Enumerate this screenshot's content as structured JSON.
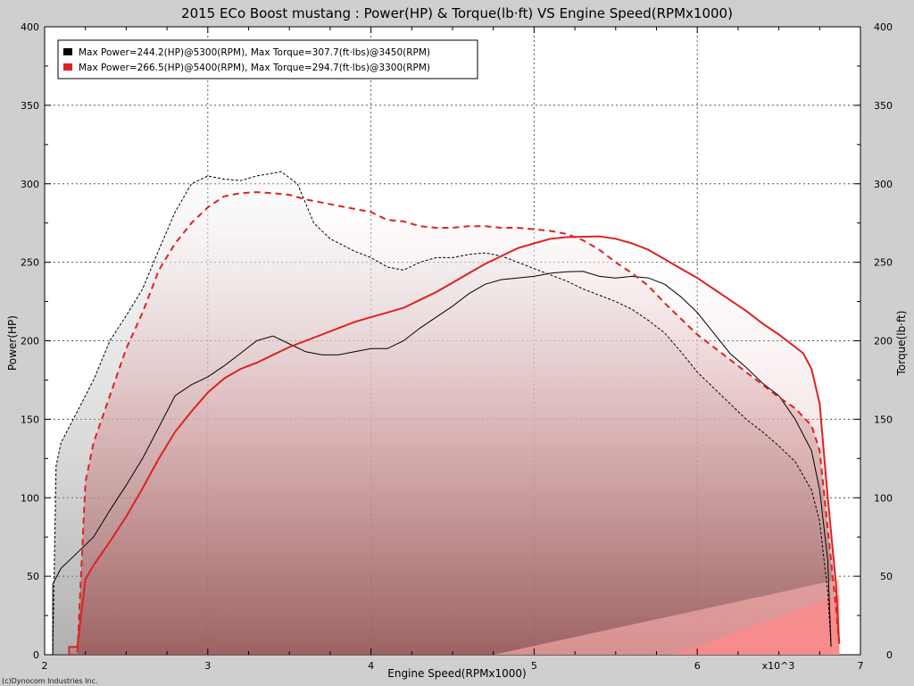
{
  "chart_data": {
    "type": "line",
    "title": "2015 ECo Boost mustang : Power(HP) & Torque(lb·ft) VS Engine Speed(RPMx1000)",
    "xlabel": "Engine Speed(RPMx1000)",
    "x_multiplier_label": "x10^3",
    "ylabel_left": "Power(HP)",
    "ylabel_right": "Torque(lb·ft)",
    "xlim": [
      2,
      7
    ],
    "ylim": [
      0,
      400
    ],
    "x_ticks": [
      "2",
      "3",
      "4",
      "5",
      "6",
      "7"
    ],
    "y_ticks": [
      "0",
      "50",
      "100",
      "150",
      "200",
      "250",
      "300",
      "350",
      "400"
    ],
    "grid": true,
    "legend_position": "top-left",
    "copyright": "(c)Dynocom Industries Inc.",
    "series": [
      {
        "name": "Max Power=244.2(HP)@5300(RPM), Max Torque=307.7(ft·lbs)@3450(RPM)",
        "color": "#000000",
        "power": [
          [
            2.05,
            0
          ],
          [
            2.05,
            45
          ],
          [
            2.1,
            55
          ],
          [
            2.2,
            65
          ],
          [
            2.3,
            75
          ],
          [
            2.4,
            92
          ],
          [
            2.5,
            108
          ],
          [
            2.6,
            125
          ],
          [
            2.7,
            145
          ],
          [
            2.8,
            165
          ],
          [
            2.9,
            172
          ],
          [
            3.0,
            177
          ],
          [
            3.1,
            184
          ],
          [
            3.2,
            192
          ],
          [
            3.3,
            200
          ],
          [
            3.4,
            203
          ],
          [
            3.5,
            198
          ],
          [
            3.6,
            193
          ],
          [
            3.7,
            191
          ],
          [
            3.8,
            191
          ],
          [
            3.9,
            193
          ],
          [
            4.0,
            195
          ],
          [
            4.1,
            195
          ],
          [
            4.2,
            200
          ],
          [
            4.3,
            208
          ],
          [
            4.4,
            215
          ],
          [
            4.5,
            222
          ],
          [
            4.6,
            230
          ],
          [
            4.7,
            236
          ],
          [
            4.8,
            239
          ],
          [
            4.9,
            240
          ],
          [
            5.0,
            241
          ],
          [
            5.1,
            243
          ],
          [
            5.2,
            244
          ],
          [
            5.3,
            244.2
          ],
          [
            5.4,
            241
          ],
          [
            5.5,
            240
          ],
          [
            5.6,
            241
          ],
          [
            5.7,
            240
          ],
          [
            5.8,
            236
          ],
          [
            5.9,
            228
          ],
          [
            6.0,
            218
          ],
          [
            6.1,
            205
          ],
          [
            6.2,
            192
          ],
          [
            6.3,
            183
          ],
          [
            6.4,
            173
          ],
          [
            6.5,
            165
          ],
          [
            6.6,
            150
          ],
          [
            6.7,
            130
          ],
          [
            6.75,
            105
          ],
          [
            6.8,
            60
          ],
          [
            6.82,
            5
          ]
        ],
        "torque": [
          [
            2.05,
            0
          ],
          [
            2.07,
            120
          ],
          [
            2.1,
            135
          ],
          [
            2.2,
            155
          ],
          [
            2.3,
            175
          ],
          [
            2.4,
            200
          ],
          [
            2.5,
            216
          ],
          [
            2.6,
            233
          ],
          [
            2.7,
            258
          ],
          [
            2.8,
            282
          ],
          [
            2.9,
            300
          ],
          [
            3.0,
            305
          ],
          [
            3.1,
            303
          ],
          [
            3.2,
            302
          ],
          [
            3.3,
            305
          ],
          [
            3.45,
            307.7
          ],
          [
            3.55,
            300
          ],
          [
            3.65,
            275
          ],
          [
            3.75,
            265
          ],
          [
            3.9,
            257
          ],
          [
            4.0,
            253
          ],
          [
            4.1,
            247
          ],
          [
            4.2,
            245
          ],
          [
            4.3,
            250
          ],
          [
            4.4,
            253
          ],
          [
            4.5,
            253
          ],
          [
            4.6,
            255
          ],
          [
            4.7,
            256
          ],
          [
            4.8,
            254
          ],
          [
            4.9,
            250
          ],
          [
            5.0,
            246
          ],
          [
            5.1,
            242
          ],
          [
            5.2,
            238
          ],
          [
            5.3,
            233
          ],
          [
            5.4,
            229
          ],
          [
            5.5,
            225
          ],
          [
            5.6,
            220
          ],
          [
            5.7,
            213
          ],
          [
            5.8,
            205
          ],
          [
            5.9,
            193
          ],
          [
            6.0,
            180
          ],
          [
            6.1,
            170
          ],
          [
            6.2,
            160
          ],
          [
            6.3,
            150
          ],
          [
            6.4,
            142
          ],
          [
            6.5,
            133
          ],
          [
            6.6,
            123
          ],
          [
            6.7,
            105
          ],
          [
            6.75,
            85
          ],
          [
            6.8,
            40
          ],
          [
            6.82,
            5
          ]
        ]
      },
      {
        "name": "Max Power=266.5(HP)@5400(RPM), Max Torque=294.7(ft·lbs)@3300(RPM)",
        "color": "#dd2222",
        "power": [
          [
            2.15,
            0
          ],
          [
            2.15,
            5
          ],
          [
            2.2,
            5
          ],
          [
            2.25,
            48
          ],
          [
            2.3,
            57
          ],
          [
            2.4,
            72
          ],
          [
            2.5,
            88
          ],
          [
            2.6,
            106
          ],
          [
            2.7,
            125
          ],
          [
            2.8,
            142
          ],
          [
            2.9,
            155
          ],
          [
            3.0,
            167
          ],
          [
            3.1,
            176
          ],
          [
            3.2,
            182
          ],
          [
            3.3,
            186
          ],
          [
            3.4,
            191
          ],
          [
            3.5,
            196
          ],
          [
            3.6,
            200
          ],
          [
            3.7,
            204
          ],
          [
            3.8,
            208
          ],
          [
            3.9,
            212
          ],
          [
            4.0,
            215
          ],
          [
            4.1,
            218
          ],
          [
            4.2,
            221
          ],
          [
            4.3,
            226
          ],
          [
            4.4,
            231
          ],
          [
            4.5,
            237
          ],
          [
            4.6,
            243
          ],
          [
            4.7,
            249
          ],
          [
            4.8,
            254
          ],
          [
            4.9,
            259
          ],
          [
            5.0,
            262
          ],
          [
            5.1,
            265
          ],
          [
            5.2,
            266
          ],
          [
            5.4,
            266.5
          ],
          [
            5.5,
            265
          ],
          [
            5.6,
            262
          ],
          [
            5.7,
            258
          ],
          [
            5.8,
            252
          ],
          [
            5.9,
            246
          ],
          [
            6.0,
            240
          ],
          [
            6.1,
            233
          ],
          [
            6.2,
            226
          ],
          [
            6.3,
            219
          ],
          [
            6.4,
            211
          ],
          [
            6.5,
            204
          ],
          [
            6.6,
            196
          ],
          [
            6.65,
            192
          ],
          [
            6.7,
            182
          ],
          [
            6.75,
            160
          ],
          [
            6.8,
            100
          ],
          [
            6.85,
            45
          ],
          [
            6.87,
            7
          ]
        ],
        "torque": [
          [
            2.15,
            0
          ],
          [
            2.2,
            0
          ],
          [
            2.25,
            110
          ],
          [
            2.3,
            135
          ],
          [
            2.4,
            165
          ],
          [
            2.5,
            195
          ],
          [
            2.6,
            218
          ],
          [
            2.7,
            245
          ],
          [
            2.8,
            262
          ],
          [
            2.9,
            275
          ],
          [
            3.0,
            285
          ],
          [
            3.1,
            292
          ],
          [
            3.2,
            294
          ],
          [
            3.3,
            294.7
          ],
          [
            3.4,
            294
          ],
          [
            3.5,
            293
          ],
          [
            3.6,
            290
          ],
          [
            3.7,
            288
          ],
          [
            3.8,
            286
          ],
          [
            3.9,
            284
          ],
          [
            4.0,
            282
          ],
          [
            4.1,
            277
          ],
          [
            4.2,
            276
          ],
          [
            4.3,
            273
          ],
          [
            4.4,
            272
          ],
          [
            4.5,
            272
          ],
          [
            4.6,
            273
          ],
          [
            4.7,
            273
          ],
          [
            4.8,
            272
          ],
          [
            4.9,
            272
          ],
          [
            5.0,
            271
          ],
          [
            5.1,
            270
          ],
          [
            5.2,
            268
          ],
          [
            5.3,
            264
          ],
          [
            5.4,
            258
          ],
          [
            5.5,
            250
          ],
          [
            5.6,
            243
          ],
          [
            5.7,
            235
          ],
          [
            5.8,
            224
          ],
          [
            5.9,
            214
          ],
          [
            6.0,
            204
          ],
          [
            6.1,
            196
          ],
          [
            6.2,
            188
          ],
          [
            6.3,
            180
          ],
          [
            6.4,
            172
          ],
          [
            6.5,
            164
          ],
          [
            6.6,
            157
          ],
          [
            6.7,
            146
          ],
          [
            6.75,
            130
          ],
          [
            6.8,
            80
          ],
          [
            6.85,
            30
          ],
          [
            6.87,
            7
          ]
        ]
      }
    ]
  }
}
